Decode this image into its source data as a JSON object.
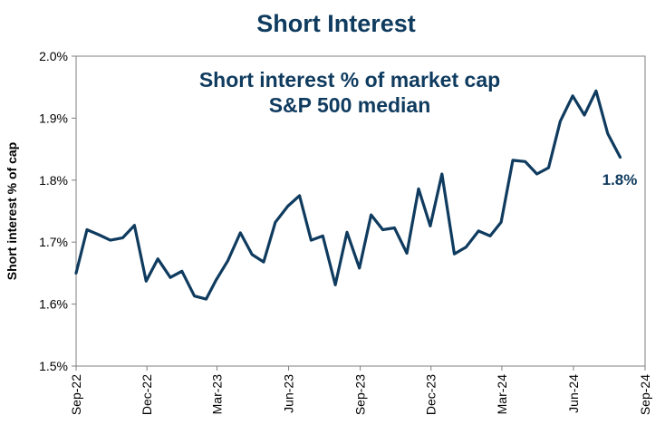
{
  "chart_data": {
    "type": "line",
    "title": "Short Interest",
    "subtitle_lines": [
      "Short interest % of market cap",
      "S&P 500 median"
    ],
    "xlabel": "",
    "ylabel": "Short interest % of cap",
    "xlim": [
      "2022-09-01",
      "2024-09-01"
    ],
    "ylim": [
      1.5,
      2.0
    ],
    "grid": false,
    "legend": "none",
    "line_color": "#0f3b5f",
    "y_ticks": [
      {
        "value": 1.5,
        "label": "1.5%"
      },
      {
        "value": 1.6,
        "label": "1.6%"
      },
      {
        "value": 1.7,
        "label": "1.7%"
      },
      {
        "value": 1.8,
        "label": "1.8%"
      },
      {
        "value": 1.9,
        "label": "1.9%"
      },
      {
        "value": 2.0,
        "label": "2.0%"
      }
    ],
    "x_ticks": [
      {
        "date": "2022-09-01",
        "label": "Sep-22"
      },
      {
        "date": "2022-12-01",
        "label": "Dec-22"
      },
      {
        "date": "2023-03-01",
        "label": "Mar-23"
      },
      {
        "date": "2023-06-01",
        "label": "Jun-23"
      },
      {
        "date": "2023-09-01",
        "label": "Sep-23"
      },
      {
        "date": "2023-12-01",
        "label": "Dec-23"
      },
      {
        "date": "2024-03-01",
        "label": "Mar-24"
      },
      {
        "date": "2024-06-01",
        "label": "Jun-24"
      },
      {
        "date": "2024-09-01",
        "label": "Sep-24"
      }
    ],
    "x": [
      "2022-09-01",
      "2022-09-15",
      "2022-09-30",
      "2022-10-15",
      "2022-10-31",
      "2022-11-15",
      "2022-11-30",
      "2022-12-15",
      "2022-12-31",
      "2023-01-15",
      "2023-01-31",
      "2023-02-15",
      "2023-02-28",
      "2023-03-15",
      "2023-03-31",
      "2023-04-15",
      "2023-04-30",
      "2023-05-15",
      "2023-05-31",
      "2023-06-15",
      "2023-06-30",
      "2023-07-15",
      "2023-07-31",
      "2023-08-15",
      "2023-08-31",
      "2023-09-15",
      "2023-09-30",
      "2023-10-15",
      "2023-10-31",
      "2023-11-15",
      "2023-11-30",
      "2023-12-15",
      "2023-12-31",
      "2024-01-15",
      "2024-01-31",
      "2024-02-15",
      "2024-02-29",
      "2024-03-15",
      "2024-03-31",
      "2024-04-15",
      "2024-04-30",
      "2024-05-15",
      "2024-05-31",
      "2024-06-15",
      "2024-06-30",
      "2024-07-15",
      "2024-07-31"
    ],
    "series": [
      {
        "values": [
          1.65,
          1.72,
          1.712,
          1.703,
          1.707,
          1.727,
          1.637,
          1.673,
          1.643,
          1.653,
          1.613,
          1.608,
          1.639,
          1.67,
          1.715,
          1.68,
          1.668,
          1.732,
          1.758,
          1.775,
          1.703,
          1.71,
          1.631,
          1.716,
          1.658,
          1.744,
          1.72,
          1.723,
          1.682,
          1.786,
          1.726,
          1.81,
          1.681,
          1.692,
          1.718,
          1.71,
          1.732,
          1.832,
          1.83,
          1.81,
          1.82,
          1.895,
          1.936,
          1.905,
          1.944,
          1.875,
          1.837
        ]
      }
    ],
    "end_label": "1.8%"
  }
}
